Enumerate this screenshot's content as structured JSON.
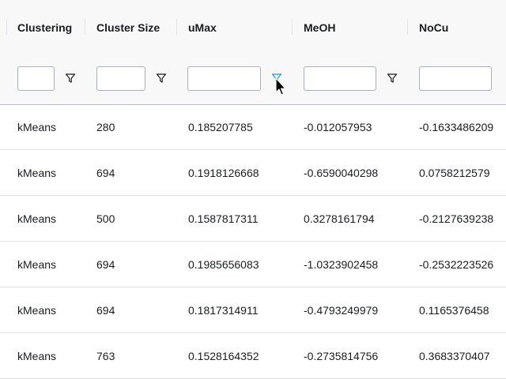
{
  "columns": [
    "Clustering",
    "Cluster Size",
    "uMax",
    "MeOH",
    "NoCu"
  ],
  "filters": {
    "clustering": "",
    "cluster_size": "",
    "umax": "",
    "meoh": "",
    "nocu": ""
  },
  "filter_icon": "filter-funnel-icon",
  "active_filter_color": "#2196f3",
  "rows": [
    [
      "kMeans",
      "280",
      "0.185207785",
      "-0.012057953",
      "-0.1633486209"
    ],
    [
      "kMeans",
      "694",
      "0.1918126668",
      "-0.6590040298",
      "0.0758212579"
    ],
    [
      "kMeans",
      "500",
      "0.1587817311",
      "0.3278161794",
      "-0.2127639238"
    ],
    [
      "kMeans",
      "694",
      "0.1985656083",
      "-1.0323902458",
      "-0.2532223526"
    ],
    [
      "kMeans",
      "694",
      "0.1817314911",
      "-0.4793249979",
      "0.1165376458"
    ],
    [
      "kMeans",
      "763",
      "0.1528164352",
      "-0.2735814756",
      "0.3683370407"
    ]
  ]
}
